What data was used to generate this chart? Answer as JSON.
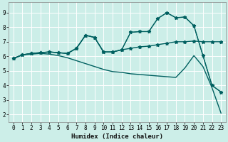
{
  "xlabel": "Humidex (Indice chaleur)",
  "bg_color": "#cceee8",
  "grid_color": "#ffffff",
  "line_color": "#006060",
  "xlim": [
    -0.5,
    23.5
  ],
  "ylim": [
    1.5,
    9.7
  ],
  "xticks": [
    0,
    1,
    2,
    3,
    4,
    5,
    6,
    7,
    8,
    9,
    10,
    11,
    12,
    13,
    14,
    15,
    16,
    17,
    18,
    19,
    20,
    21,
    22,
    23
  ],
  "yticks": [
    2,
    3,
    4,
    5,
    6,
    7,
    8,
    9
  ],
  "s1_x": [
    0,
    1,
    2,
    3,
    4,
    5,
    6,
    7,
    8,
    9,
    10,
    11,
    12,
    13,
    14,
    15,
    16,
    17,
    18,
    19,
    20,
    21,
    22,
    23
  ],
  "s1_y": [
    5.85,
    6.1,
    6.2,
    6.25,
    6.3,
    6.25,
    6.2,
    6.55,
    7.45,
    7.3,
    6.3,
    6.3,
    6.45,
    6.55,
    6.65,
    6.7,
    6.8,
    6.9,
    7.0,
    7.0,
    7.05,
    7.0,
    7.0,
    7.0
  ],
  "s2_x": [
    0,
    1,
    2,
    3,
    4,
    5,
    6,
    7,
    8,
    9,
    10,
    11,
    12,
    13,
    14,
    15,
    16,
    17,
    18,
    19,
    20,
    21,
    22,
    23
  ],
  "s2_y": [
    5.85,
    6.1,
    6.2,
    6.25,
    6.3,
    6.25,
    6.2,
    6.55,
    7.45,
    7.3,
    6.3,
    6.3,
    6.45,
    7.65,
    7.7,
    7.7,
    8.6,
    9.0,
    8.65,
    8.7,
    8.1,
    6.05,
    4.0,
    3.55
  ],
  "s3_x": [
    0,
    1,
    2,
    3,
    4,
    5,
    6,
    7,
    8,
    9,
    10,
    11,
    12,
    13,
    14,
    15,
    16,
    17,
    18,
    19,
    20,
    21,
    22,
    23
  ],
  "s3_y": [
    5.85,
    6.1,
    6.2,
    6.25,
    6.3,
    6.25,
    6.2,
    6.55,
    7.45,
    7.3,
    6.3,
    6.3,
    6.45,
    7.65,
    7.7,
    7.7,
    8.6,
    9.0,
    8.65,
    8.7,
    8.1,
    6.05,
    4.0,
    3.55
  ],
  "s4_x": [
    0,
    1,
    2,
    3,
    4,
    5,
    6,
    7,
    8,
    9,
    10,
    11,
    12,
    13,
    14,
    15,
    16,
    17,
    18,
    19,
    20,
    21,
    22,
    23
  ],
  "s4_y": [
    5.85,
    6.1,
    6.15,
    6.2,
    6.15,
    6.05,
    5.9,
    5.7,
    5.5,
    5.3,
    5.1,
    4.95,
    4.9,
    4.8,
    4.75,
    4.7,
    4.65,
    4.6,
    4.55,
    5.2,
    6.05,
    5.3,
    3.85,
    2.1
  ],
  "xlabel_fontsize": 6.5,
  "tick_fontsize": 5.5,
  "linewidth": 1.0,
  "markersize": 3.5
}
